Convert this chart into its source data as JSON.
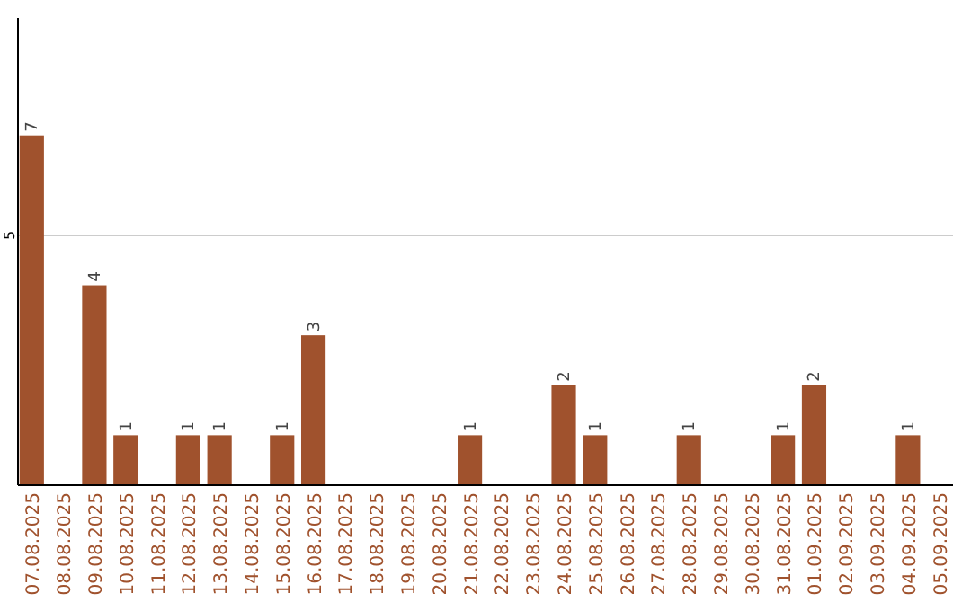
{
  "chart_data": {
    "type": "bar",
    "categories": [
      "07.08.2025",
      "08.08.2025",
      "09.08.2025",
      "10.08.2025",
      "11.08.2025",
      "12.08.2025",
      "13.08.2025",
      "14.08.2025",
      "15.08.2025",
      "16.08.2025",
      "17.08.2025",
      "18.08.2025",
      "19.08.2025",
      "20.08.2025",
      "21.08.2025",
      "22.08.2025",
      "23.08.2025",
      "24.08.2025",
      "25.08.2025",
      "26.08.2025",
      "27.08.2025",
      "28.08.2025",
      "29.08.2025",
      "30.08.2025",
      "31.08.2025",
      "01.09.2025",
      "02.09.2025",
      "03.09.2025",
      "04.09.2025",
      "05.09.2025"
    ],
    "values": [
      7,
      0,
      4,
      1,
      0,
      1,
      1,
      0,
      1,
      3,
      0,
      0,
      0,
      0,
      1,
      0,
      0,
      2,
      1,
      0,
      0,
      1,
      0,
      0,
      1,
      2,
      0,
      0,
      1,
      0
    ],
    "value_labels": [
      "7",
      null,
      "4",
      "1",
      null,
      "1",
      "1",
      null,
      "1",
      "3",
      null,
      null,
      null,
      null,
      "1",
      null,
      null,
      "2",
      "1",
      null,
      null,
      "1",
      null,
      null,
      "1",
      "2",
      null,
      null,
      "1",
      null
    ],
    "color": "#a0522d",
    "ylim": [
      0,
      9.35
    ],
    "yticks": [
      5
    ],
    "grid": "y"
  }
}
